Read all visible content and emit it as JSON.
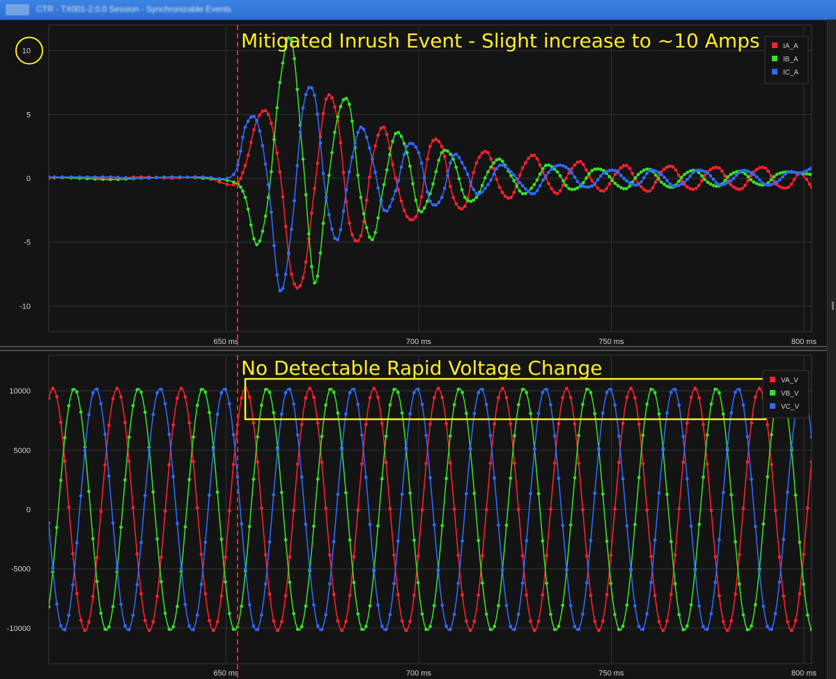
{
  "window": {
    "title": "CTR - TX001-2.0.0 Session - Synchronizable Events"
  },
  "colors": {
    "red": "#ff2030",
    "green": "#38e02c",
    "blue": "#2f6bff",
    "marker": "#ffee22",
    "cursor": "#ff2222"
  },
  "chart_data": [
    {
      "type": "line",
      "annotation": "Mitigated Inrush Event - Slight increase to ~10 Amps",
      "highlighted_tick": "10",
      "xlim": [
        604,
        802
      ],
      "ylim": [
        -12,
        12
      ],
      "yticks": [
        10,
        5,
        0,
        -5,
        -10
      ],
      "xticks": [
        650,
        700,
        750,
        800
      ],
      "xtick_labels": [
        "650 ms",
        "700 ms",
        "750 ms",
        "800 ms"
      ],
      "event_marker_x": 653,
      "grid": true,
      "legend_position": "top-right",
      "series": [
        {
          "name": "IA_A",
          "color": "red",
          "x": [
            604,
            612,
            620,
            628,
            636,
            644,
            652,
            655,
            658,
            661,
            664,
            667,
            670,
            673,
            676,
            679,
            682,
            685,
            688,
            691,
            694,
            697,
            700,
            703,
            706,
            709,
            712,
            715,
            718,
            721,
            724,
            727,
            730,
            733,
            736,
            739,
            742,
            745,
            748,
            751,
            754,
            757,
            760,
            763,
            766,
            769,
            772,
            775,
            778,
            781,
            784,
            787,
            790,
            793,
            796,
            799,
            802
          ],
          "values": [
            0,
            0.1,
            0,
            0.1,
            0,
            0.1,
            -0.5,
            1.0,
            4.5,
            5.0,
            0.5,
            -7.5,
            -7.8,
            -0.8,
            6.2,
            4.5,
            -3.5,
            -4.5,
            1.5,
            4.0,
            0,
            -3.0,
            -2.5,
            2.5,
            2.5,
            -1.5,
            -2.2,
            1.2,
            2.0,
            -0.7,
            -1.5,
            0.8,
            1.8,
            0,
            -1.2,
            0.4,
            1.3,
            -0.2,
            -1.0,
            0.3,
            1.0,
            -0.4,
            -1.0,
            0.5,
            0.9,
            -0.5,
            -0.8,
            0.5,
            0.8,
            -0.5,
            -0.8,
            0.5,
            0.8,
            -0.5,
            -0.7,
            0.4,
            -0.7
          ]
        },
        {
          "name": "IB_A",
          "color": "green",
          "x": [
            604,
            612,
            620,
            628,
            636,
            644,
            652,
            655,
            658,
            661,
            664,
            667,
            670,
            673,
            676,
            679,
            682,
            685,
            688,
            691,
            694,
            697,
            700,
            703,
            706,
            709,
            712,
            715,
            718,
            721,
            724,
            727,
            730,
            733,
            736,
            739,
            742,
            745,
            748,
            751,
            754,
            757,
            760,
            763,
            766,
            769,
            772,
            775,
            778,
            781,
            784,
            787,
            790,
            793,
            796,
            799,
            802
          ],
          "values": [
            0.1,
            0,
            -0.1,
            0,
            0.1,
            0,
            -0.3,
            -1.5,
            -5.2,
            -1.5,
            7.5,
            10.8,
            1.5,
            -8.2,
            -1.5,
            4.8,
            5.8,
            -1.5,
            -4.8,
            -0.5,
            3.5,
            2.0,
            -2.5,
            -1.2,
            2.0,
            1.5,
            -1.5,
            -1.5,
            0.5,
            1.5,
            0.2,
            -1.2,
            -0.5,
            1.0,
            0.5,
            -0.8,
            -0.6,
            0.6,
            0.6,
            -0.4,
            -0.8,
            0.3,
            0.7,
            -0.3,
            -0.7,
            0.3,
            0.6,
            -0.3,
            -0.6,
            0.3,
            0.5,
            -0.3,
            -0.5,
            0.3,
            0.5,
            0.4,
            0.3
          ]
        },
        {
          "name": "IC_A",
          "color": "blue",
          "x": [
            604,
            612,
            620,
            628,
            636,
            644,
            652,
            655,
            658,
            661,
            664,
            667,
            670,
            673,
            676,
            679,
            682,
            685,
            688,
            691,
            694,
            697,
            700,
            703,
            706,
            709,
            712,
            715,
            718,
            721,
            724,
            727,
            730,
            733,
            736,
            739,
            742,
            745,
            748,
            751,
            754,
            757,
            760,
            763,
            766,
            769,
            772,
            775,
            778,
            781,
            784,
            787,
            790,
            793,
            796,
            799,
            802
          ],
          "values": [
            0.1,
            0.1,
            0.1,
            0,
            0.1,
            0.1,
            0.3,
            4.0,
            4.5,
            -0.5,
            -8.8,
            -4.0,
            5.5,
            6.5,
            -1.5,
            -4.8,
            0.5,
            4.0,
            1.5,
            -2.5,
            -1.0,
            2.5,
            2.0,
            -1.8,
            -1.5,
            1.8,
            0.8,
            -1.2,
            -0.5,
            1.0,
            0.5,
            -0.6,
            -1.2,
            0.2,
            1.0,
            0.7,
            -0.5,
            -0.6,
            0.4,
            0.6,
            -0.2,
            -0.5,
            0.6,
            0.3,
            -0.6,
            -0.3,
            0.6,
            0.4,
            -0.5,
            -0.2,
            0.6,
            0.3,
            -0.5,
            -0.3,
            0.5,
            0.4,
            0.8
          ]
        }
      ]
    },
    {
      "type": "line",
      "annotation": "No Detectable Rapid Voltage Change",
      "xlim": [
        604,
        802
      ],
      "ylim": [
        -13000,
        13000
      ],
      "yticks": [
        10000,
        5000,
        0,
        -5000,
        -10000
      ],
      "xticks": [
        650,
        700,
        750,
        800
      ],
      "xtick_labels": [
        "650 ms",
        "700 ms",
        "750 ms",
        "800 ms"
      ],
      "event_marker_x": 653,
      "highlight_box_x": [
        655,
        790
      ],
      "highlight_box_y": [
        7600,
        11000
      ],
      "grid": true,
      "legend_position": "top-right",
      "waveform": {
        "amplitude": 10200,
        "frequency_hz": 60,
        "phase_spacing_deg": 120,
        "phase_offset_deg": -20
      },
      "series": [
        {
          "name": "VA_V",
          "color": "red"
        },
        {
          "name": "VB_V",
          "color": "green"
        },
        {
          "name": "VC_V",
          "color": "blue"
        }
      ]
    }
  ]
}
